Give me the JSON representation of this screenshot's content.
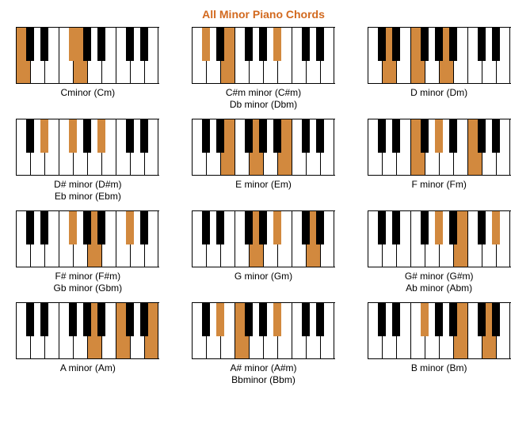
{
  "title": "All Minor Piano Chords",
  "title_color": "#d2691e",
  "highlight_color": "#d2893e",
  "white_key_width": 18,
  "black_key_width": 10,
  "keyboard_height": 70,
  "black_key_height": 42,
  "chords": [
    {
      "labels": [
        "Cminor (Cm)"
      ],
      "whites": 10,
      "black_positions": [
        1,
        2,
        4,
        5,
        6,
        8,
        9
      ],
      "highlight_white": [
        0,
        4
      ],
      "highlight_black": [
        2
      ]
    },
    {
      "labels": [
        "C#m minor (C#m)",
        "Db minor (Dbm)"
      ],
      "whites": 10,
      "black_positions": [
        1,
        2,
        4,
        5,
        6,
        8,
        9
      ],
      "highlight_white": [
        2
      ],
      "highlight_black": [
        0,
        4
      ]
    },
    {
      "labels": [
        "D minor (Dm)"
      ],
      "whites": 10,
      "black_positions": [
        1,
        2,
        4,
        5,
        6,
        8,
        9
      ],
      "highlight_white": [
        1,
        3,
        5
      ],
      "highlight_black": []
    },
    {
      "labels": [
        "D# minor (D#m)",
        "Eb minor (Ebm)"
      ],
      "whites": 10,
      "black_positions": [
        1,
        2,
        4,
        5,
        6,
        8,
        9
      ],
      "highlight_white": [],
      "highlight_black": [
        1,
        2,
        4
      ]
    },
    {
      "labels": [
        "E minor (Em)"
      ],
      "whites": 10,
      "black_positions": [
        1,
        2,
        4,
        5,
        6,
        8,
        9
      ],
      "highlight_white": [
        2,
        4,
        6
      ],
      "highlight_black": []
    },
    {
      "labels": [
        "F minor (Fm)"
      ],
      "whites": 10,
      "black_positions": [
        1,
        2,
        4,
        5,
        6,
        8,
        9
      ],
      "highlight_white": [
        3,
        7
      ],
      "highlight_black": [
        3
      ]
    },
    {
      "labels": [
        "F# minor (F#m)",
        "Gb minor (Gbm)"
      ],
      "whites": 10,
      "black_positions": [
        1,
        2,
        4,
        5,
        6,
        8,
        9
      ],
      "highlight_white": [
        5
      ],
      "highlight_black": [
        2,
        5
      ]
    },
    {
      "labels": [
        "G minor (Gm)"
      ],
      "whites": 10,
      "black_positions": [
        1,
        2,
        4,
        5,
        6,
        8,
        9
      ],
      "highlight_white": [
        4,
        8
      ],
      "highlight_black": [
        4
      ]
    },
    {
      "labels": [
        "G# minor (G#m)",
        "Ab minor (Abm)"
      ],
      "whites": 10,
      "black_positions": [
        1,
        2,
        4,
        5,
        6,
        8,
        9
      ],
      "highlight_white": [
        6
      ],
      "highlight_black": [
        3,
        6
      ]
    },
    {
      "labels": [
        "A minor (Am)"
      ],
      "whites": 10,
      "black_positions": [
        1,
        2,
        4,
        5,
        6,
        8,
        9
      ],
      "highlight_white": [
        5,
        7,
        9
      ],
      "highlight_black": []
    },
    {
      "labels": [
        "A# minor (A#m)",
        "Bbminor (Bbm)"
      ],
      "whites": 10,
      "black_positions": [
        1,
        2,
        4,
        5,
        6,
        8,
        9
      ],
      "highlight_white": [
        3
      ],
      "highlight_black": [
        1,
        4
      ]
    },
    {
      "labels": [
        "B minor (Bm)"
      ],
      "whites": 10,
      "black_positions": [
        1,
        2,
        4,
        5,
        6,
        8,
        9
      ],
      "highlight_white": [
        6,
        8
      ],
      "highlight_black": [
        2
      ]
    }
  ]
}
